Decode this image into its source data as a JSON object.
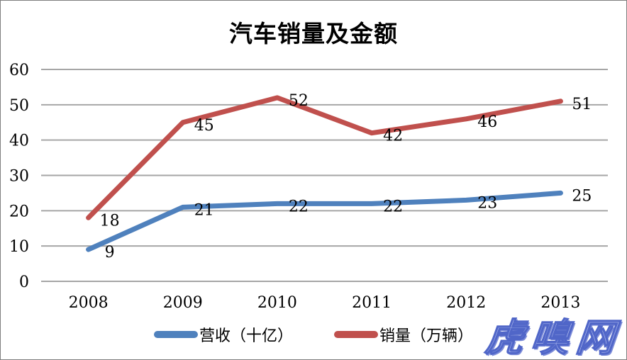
{
  "chart": {
    "title": "汽车销量及金额",
    "watermark": "虎嗅网"
  },
  "chart_data": {
    "type": "line",
    "title": "汽车销量及金额",
    "categories": [
      "2008",
      "2009",
      "2010",
      "2011",
      "2012",
      "2013"
    ],
    "series": [
      {
        "name": "营收（十亿）",
        "color": "#4F81BD",
        "values": [
          9,
          21,
          22,
          22,
          23,
          25
        ]
      },
      {
        "name": "销量（万辆）",
        "color": "#C0504D",
        "values": [
          18,
          45,
          52,
          42,
          46,
          51
        ]
      }
    ],
    "xlabel": "",
    "ylabel": "",
    "ylim": [
      0,
      60
    ],
    "yticks": [
      0,
      10,
      20,
      30,
      40,
      50,
      60
    ],
    "grid": true,
    "data_labels": true,
    "legend_position": "bottom"
  },
  "colors": {
    "grid": "#a6a6a6",
    "axis_text": "#000000",
    "data_label_text": "#000000",
    "frame_border": "#7f7f7f",
    "watermark_fill": "#aab6ec",
    "watermark_outline": "#5066c8"
  }
}
